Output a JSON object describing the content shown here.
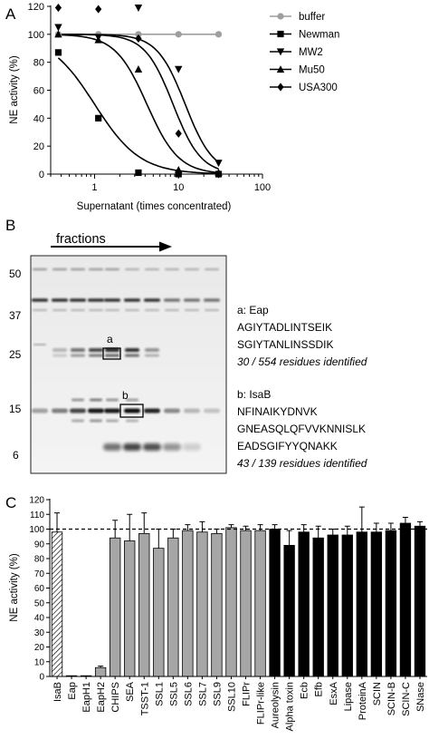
{
  "figure": {
    "panels": [
      {
        "letter": "A"
      },
      {
        "letter": "B"
      },
      {
        "letter": "C"
      }
    ]
  },
  "chart_data": [
    {
      "type": "line",
      "panel": "A",
      "xlabel": "Supernatant (times concentrated)",
      "ylabel": "NE activity (%)",
      "xscale": "log",
      "xlim": [
        0.3,
        100
      ],
      "ylim": [
        0,
        120
      ],
      "xticks": [
        1,
        10,
        100
      ],
      "xtick_labels": [
        "1",
        "10",
        "100"
      ],
      "yticks": [
        0,
        20,
        40,
        60,
        80,
        100,
        120
      ],
      "ytick_labels": [
        "0",
        "20",
        "40",
        "60",
        "80",
        "100",
        "120"
      ],
      "legend_position": "right",
      "series": [
        {
          "name": "buffer",
          "marker": "circle",
          "color": "#9e9e9e",
          "x": [
            0.37,
            1.11,
            3.33,
            10,
            30
          ],
          "y": [
            100,
            100,
            100,
            100,
            100
          ]
        },
        {
          "name": "Newman",
          "marker": "square",
          "color": "#000000",
          "x": [
            0.37,
            1.11,
            3.33,
            10,
            30
          ],
          "y": [
            87,
            40,
            1,
            0,
            0
          ]
        },
        {
          "name": "MW2",
          "marker": "triangle-down",
          "color": "#000000",
          "x": [
            0.37,
            1.11,
            3.33,
            10,
            30
          ],
          "y": [
            105,
            98,
            119,
            75,
            8
          ]
        },
        {
          "name": "Mu50",
          "marker": "triangle-up",
          "color": "#000000",
          "x": [
            0.37,
            1.11,
            3.33,
            10,
            30
          ],
          "y": [
            100,
            96,
            75,
            3,
            1
          ]
        },
        {
          "name": "USA300",
          "marker": "diamond",
          "color": "#000000",
          "x": [
            0.37,
            1.11,
            3.33,
            10,
            30
          ],
          "y": [
            119,
            118,
            97,
            29,
            0
          ]
        }
      ]
    },
    {
      "type": "bar",
      "panel": "C",
      "ylabel": "NE activity (%)",
      "ylim": [
        0,
        120
      ],
      "yticks": [
        0,
        10,
        20,
        30,
        40,
        50,
        60,
        70,
        80,
        90,
        100,
        110,
        120
      ],
      "ytick_labels": [
        "0",
        "10",
        "20",
        "30",
        "40",
        "50",
        "60",
        "70",
        "80",
        "90",
        "100",
        "110",
        "120"
      ],
      "reference_line": 100,
      "categories": [
        "IsaB",
        "Eap",
        "EapH1",
        "EapH2",
        "CHIPS",
        "SEA",
        "TSST-1",
        "SSL1",
        "SSL5",
        "SSL6",
        "SSL7",
        "SSL9",
        "SSL10",
        "FLIPr",
        "FLIPr-like",
        "Aureolysin",
        "Alpha toxin",
        "Ecb",
        "Efb",
        "EsxA",
        "Lipase",
        "ProteinA",
        "SCIN",
        "SCIN-B",
        "SCIN-C",
        "SNase"
      ],
      "values": [
        98,
        0.5,
        0.5,
        6,
        94,
        92,
        97,
        87,
        94,
        99,
        98,
        97,
        101,
        99,
        99,
        100,
        89,
        98,
        94,
        96,
        96,
        98,
        98,
        99,
        104,
        102
      ],
      "errors": [
        13,
        0,
        0,
        1,
        12,
        18,
        14,
        13,
        6,
        4,
        7,
        3,
        2,
        3,
        4,
        3,
        10,
        5,
        8,
        4,
        6,
        17,
        6,
        5,
        4,
        3
      ],
      "fills": [
        "hatched",
        "gray",
        "gray",
        "gray",
        "gray",
        "gray",
        "gray",
        "gray",
        "gray",
        "gray",
        "gray",
        "gray",
        "gray",
        "gray",
        "gray",
        "black",
        "black",
        "black",
        "black",
        "black",
        "black",
        "black",
        "black",
        "black",
        "black",
        "black"
      ],
      "colors": {
        "gray": "#a6a6a6",
        "black": "#000000",
        "hatched": "#ffffff"
      }
    }
  ],
  "gel": {
    "fractions_label": "fractions",
    "markers": [
      {
        "label": "50"
      },
      {
        "label": "37"
      },
      {
        "label": "25"
      },
      {
        "label": "15"
      },
      {
        "label": "6"
      }
    ],
    "band_a": "a",
    "band_b": "b",
    "annotations": [
      {
        "id": "a",
        "title": "a: Eap",
        "peptides": [
          "AGIYTADLINTSEIK",
          "SGIYTANLINSSDIK"
        ],
        "coverage": "30 / 554 residues identified"
      },
      {
        "id": "b",
        "title": "b: IsaB",
        "peptides": [
          "NFINAIKYDNVK",
          "GNEASQLQFVVKNNISLK",
          "EADSGIFYYQNAKK"
        ],
        "coverage": "43 / 139 residues identified"
      }
    ]
  }
}
